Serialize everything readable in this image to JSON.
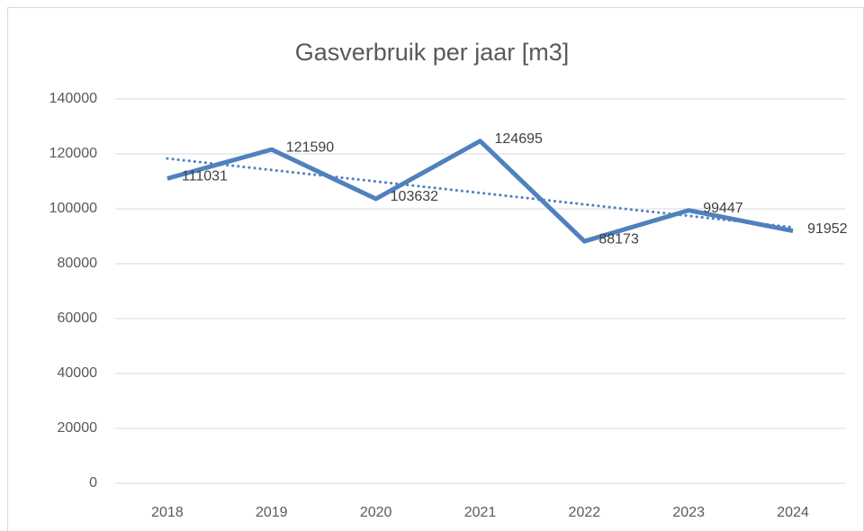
{
  "chart_data": {
    "type": "line",
    "title": "Gasverbruik per jaar [m3]",
    "categories": [
      "2018",
      "2019",
      "2020",
      "2021",
      "2022",
      "2023",
      "2024"
    ],
    "series": [
      {
        "color": "#4f81bd",
        "values": [
          111031,
          121590,
          103632,
          124695,
          88173,
          99447,
          91952
        ]
      }
    ],
    "ylim": [
      0,
      140000
    ],
    "yticks": [
      0,
      20000,
      40000,
      60000,
      80000,
      100000,
      120000,
      140000
    ],
    "grid": true,
    "data_labels": true,
    "trendline": "linear"
  }
}
